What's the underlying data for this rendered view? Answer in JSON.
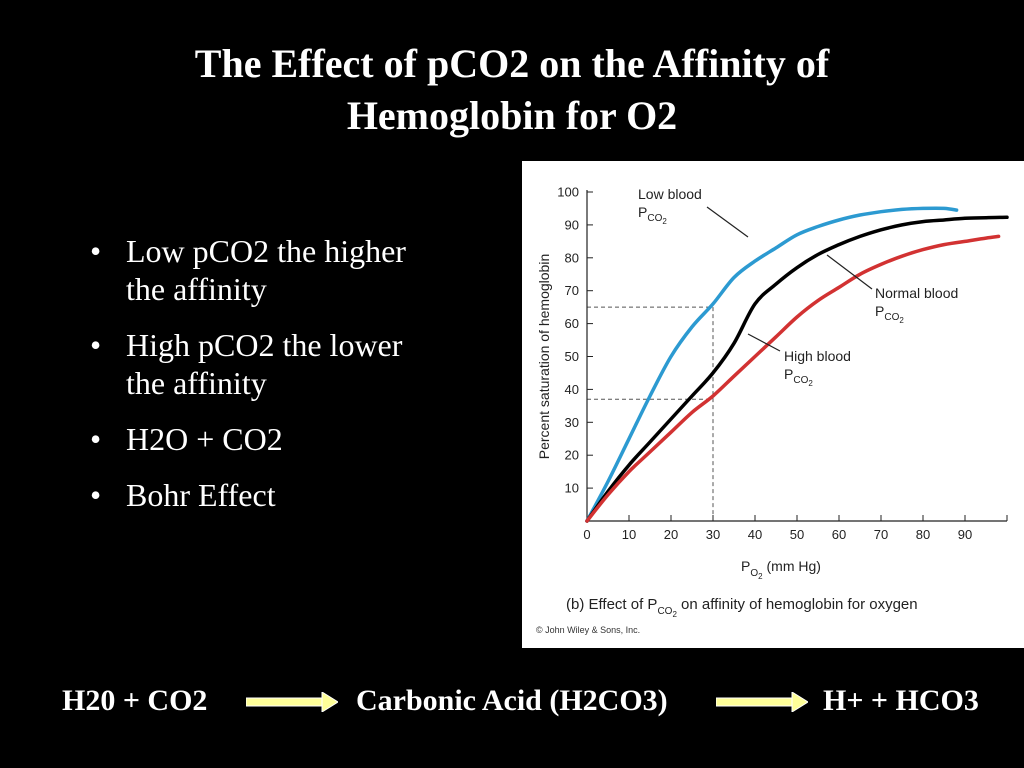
{
  "title": {
    "line1": "The Effect of pCO2 on the Affinity of",
    "line2": "Hemoglobin for O2"
  },
  "bullets": [
    {
      "text1": "Low pCO2 the higher",
      "text2": "the affinity"
    },
    {
      "text1": "High pCO2 the lower",
      "text2": "the affinity"
    },
    {
      "text1": "H2O + CO2",
      "text2": ""
    },
    {
      "text1": "Bohr Effect",
      "text2": ""
    }
  ],
  "bullet_glyph": "•",
  "equation": {
    "term1": "H20 + CO2",
    "term2": "Carbonic Acid (H2CO3)",
    "term3": "H+  + HCO3",
    "arrow_color": "#ffff99"
  },
  "chart_data": {
    "type": "line",
    "title": "",
    "ylabel": "Percent saturation of hemoglobin",
    "xlabel_main": "P",
    "xlabel_sub": "O",
    "xlabel_subsub": "2",
    "xlabel_unit": " (mm Hg)",
    "xlim": [
      0,
      100
    ],
    "ylim": [
      0,
      100
    ],
    "xticks": [
      0,
      10,
      20,
      30,
      40,
      50,
      60,
      70,
      80,
      90
    ],
    "yticks": [
      10,
      20,
      30,
      40,
      50,
      60,
      70,
      80,
      90,
      100
    ],
    "caption_prefix": "(b) Effect of P",
    "caption_sub": "CO",
    "caption_subsub": "2",
    "caption_suffix": " on affinity of hemoglobin for oxygen",
    "credit": "© John Wiley & Sons, Inc.",
    "reference_lines": [
      {
        "x": 30,
        "y": 65
      },
      {
        "x": 30,
        "y": 37
      }
    ],
    "series": [
      {
        "name": "Low blood",
        "sub": "P",
        "subsub": "CO",
        "subsubsub": "2",
        "color": "#2c9ad1",
        "x": [
          0,
          5,
          10,
          15,
          20,
          25,
          30,
          35,
          40,
          45,
          50,
          55,
          60,
          65,
          70,
          75,
          80,
          85,
          88
        ],
        "y": [
          0,
          12,
          25,
          38,
          50,
          59,
          66,
          74,
          79,
          83,
          87,
          89.5,
          91.5,
          93,
          94,
          94.7,
          95,
          95,
          94.5
        ]
      },
      {
        "name": "Normal blood",
        "sub": "P",
        "subsub": "CO",
        "subsubsub": "2",
        "color": "#000000",
        "x": [
          0,
          5,
          10,
          15,
          20,
          25,
          30,
          35,
          40,
          45,
          50,
          55,
          60,
          65,
          70,
          75,
          80,
          85,
          90,
          95,
          100
        ],
        "y": [
          0,
          9,
          17,
          24,
          31,
          38,
          45,
          54,
          66,
          72,
          77,
          81,
          84,
          86.5,
          88.5,
          90,
          91,
          91.5,
          92,
          92.2,
          92.3
        ]
      },
      {
        "name": "High blood",
        "sub": "P",
        "subsub": "CO",
        "subsubsub": "2",
        "color": "#d23232",
        "x": [
          0,
          5,
          10,
          15,
          20,
          25,
          30,
          35,
          40,
          45,
          50,
          55,
          60,
          65,
          70,
          75,
          80,
          85,
          90,
          95,
          98
        ],
        "y": [
          0,
          8,
          15,
          21,
          27,
          33,
          38,
          44,
          50,
          56,
          62,
          67,
          71,
          75,
          78,
          80.5,
          82.5,
          84,
          85,
          86,
          86.5
        ]
      }
    ]
  }
}
